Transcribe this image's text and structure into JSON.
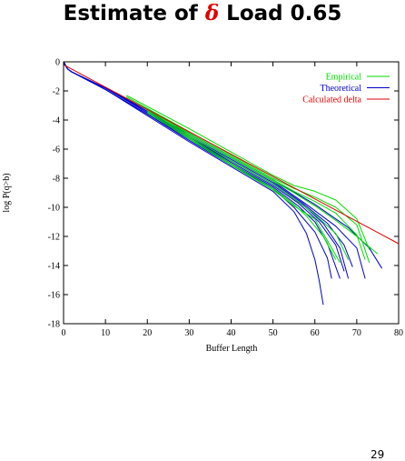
{
  "slide": {
    "title_prefix": "Estimate of ",
    "title_symbol": "δ",
    "title_suffix": " Load 0.65",
    "page_number": "29"
  },
  "colors": {
    "empirical": "#00dd00",
    "theoretical": "#0000cc",
    "calculated": "#dd0000"
  },
  "chart_data": {
    "type": "line",
    "xlabel": "Buffer Length",
    "ylabel": "log P(q>b)",
    "xlim": [
      0,
      80
    ],
    "ylim": [
      -18,
      0
    ],
    "xticks": [
      0,
      10,
      20,
      30,
      40,
      50,
      60,
      70,
      80
    ],
    "yticks": [
      0,
      -2,
      -4,
      -6,
      -8,
      -10,
      -12,
      -14,
      -16,
      -18
    ],
    "legend_position": "top-right",
    "grid": false,
    "series": [
      {
        "name": "Empirical",
        "group": "empirical",
        "x": [
          15,
          30,
          40,
          45,
          50,
          55,
          60,
          65,
          70,
          73
        ],
        "y": [
          -2.3,
          -4.6,
          -6.2,
          -7.0,
          -7.8,
          -8.5,
          -8.9,
          -9.5,
          -10.8,
          -12.9
        ]
      },
      {
        "group": "empirical",
        "x": [
          15,
          30,
          40,
          50,
          55,
          60,
          65,
          70,
          73
        ],
        "y": [
          -2.4,
          -4.8,
          -6.4,
          -8.0,
          -8.7,
          -9.3,
          -10.0,
          -11.2,
          -13.8
        ]
      },
      {
        "group": "empirical",
        "x": [
          15,
          30,
          40,
          50,
          55,
          60,
          65,
          70,
          72
        ],
        "y": [
          -2.5,
          -4.9,
          -6.5,
          -8.1,
          -8.9,
          -9.6,
          -10.4,
          -11.9,
          -13.6
        ]
      },
      {
        "group": "empirical",
        "x": [
          20,
          30,
          40,
          50,
          55,
          60,
          65,
          70,
          75
        ],
        "y": [
          -3.2,
          -5.0,
          -6.6,
          -8.2,
          -9.0,
          -9.9,
          -10.9,
          -12.0,
          -13.2
        ]
      },
      {
        "group": "empirical",
        "x": [
          20,
          30,
          40,
          50,
          55,
          60,
          65,
          68
        ],
        "y": [
          -3.3,
          -5.1,
          -6.8,
          -8.4,
          -9.4,
          -10.5,
          -11.8,
          -13.6
        ]
      },
      {
        "group": "empirical",
        "x": [
          20,
          30,
          40,
          50,
          55,
          58,
          62,
          65
        ],
        "y": [
          -3.4,
          -5.2,
          -7.0,
          -8.7,
          -9.8,
          -10.6,
          -12.0,
          -13.6
        ]
      },
      {
        "group": "empirical",
        "x": [
          20,
          30,
          40,
          50,
          55,
          60,
          66
        ],
        "y": [
          -3.5,
          -5.3,
          -7.1,
          -8.8,
          -9.9,
          -10.8,
          -13.8
        ]
      },
      {
        "name": "Theoretical",
        "group": "theoretical",
        "x": [
          0,
          0.5,
          1,
          2,
          10,
          20,
          30,
          40,
          50,
          55,
          58,
          60,
          61,
          62
        ],
        "y": [
          0,
          -0.3,
          -0.5,
          -0.7,
          -1.9,
          -3.7,
          -5.5,
          -7.2,
          -8.9,
          -10.3,
          -11.8,
          -13.6,
          -15.0,
          -16.7
        ]
      },
      {
        "group": "theoretical",
        "x": [
          0,
          1,
          2,
          10,
          20,
          30,
          40,
          50,
          55,
          60,
          63,
          64
        ],
        "y": [
          0,
          -0.5,
          -0.7,
          -1.9,
          -3.6,
          -5.4,
          -7.1,
          -8.7,
          -10.0,
          -11.7,
          -13.5,
          -14.9
        ]
      },
      {
        "group": "theoretical",
        "x": [
          0,
          1,
          2,
          10,
          20,
          30,
          40,
          50,
          56,
          60,
          63,
          66
        ],
        "y": [
          0,
          -0.5,
          -0.7,
          -1.9,
          -3.6,
          -5.3,
          -7.0,
          -8.6,
          -9.9,
          -11.0,
          -12.5,
          -14.9
        ]
      },
      {
        "group": "theoretical",
        "x": [
          0,
          1,
          2,
          10,
          20,
          30,
          40,
          50,
          56,
          61,
          65,
          67
        ],
        "y": [
          0,
          -0.5,
          -0.7,
          -1.8,
          -3.5,
          -5.2,
          -6.9,
          -8.5,
          -9.7,
          -11.0,
          -12.6,
          -14.4
        ]
      },
      {
        "group": "theoretical",
        "x": [
          0,
          1,
          2,
          10,
          20,
          30,
          40,
          50,
          57,
          62,
          66,
          68
        ],
        "y": [
          0,
          -0.5,
          -0.7,
          -1.8,
          -3.5,
          -5.2,
          -6.8,
          -8.4,
          -9.8,
          -11.1,
          -12.8,
          -14.9
        ]
      },
      {
        "group": "theoretical",
        "x": [
          0,
          1,
          2,
          10,
          20,
          30,
          40,
          50,
          57,
          63,
          67,
          69
        ],
        "y": [
          0,
          -0.5,
          -0.7,
          -1.8,
          -3.4,
          -5.1,
          -6.7,
          -8.3,
          -9.7,
          -11.1,
          -12.6,
          -14.1
        ]
      },
      {
        "group": "theoretical",
        "x": [
          0,
          1,
          2,
          10,
          20,
          30,
          40,
          50,
          58,
          65,
          70,
          72
        ],
        "y": [
          0,
          -0.5,
          -0.7,
          -1.8,
          -3.4,
          -5.0,
          -6.6,
          -8.2,
          -9.8,
          -11.3,
          -12.8,
          -14.9
        ]
      },
      {
        "group": "theoretical",
        "x": [
          0,
          1,
          2,
          10,
          20,
          30,
          40,
          50,
          60,
          68,
          73,
          76
        ],
        "y": [
          0,
          -0.5,
          -0.7,
          -1.8,
          -3.3,
          -4.9,
          -6.5,
          -8.1,
          -9.8,
          -11.4,
          -12.8,
          -14.2
        ]
      },
      {
        "name": "Calculated delta",
        "group": "calculated",
        "x": [
          0,
          80
        ],
        "y": [
          -0.2,
          -12.5
        ]
      }
    ]
  }
}
